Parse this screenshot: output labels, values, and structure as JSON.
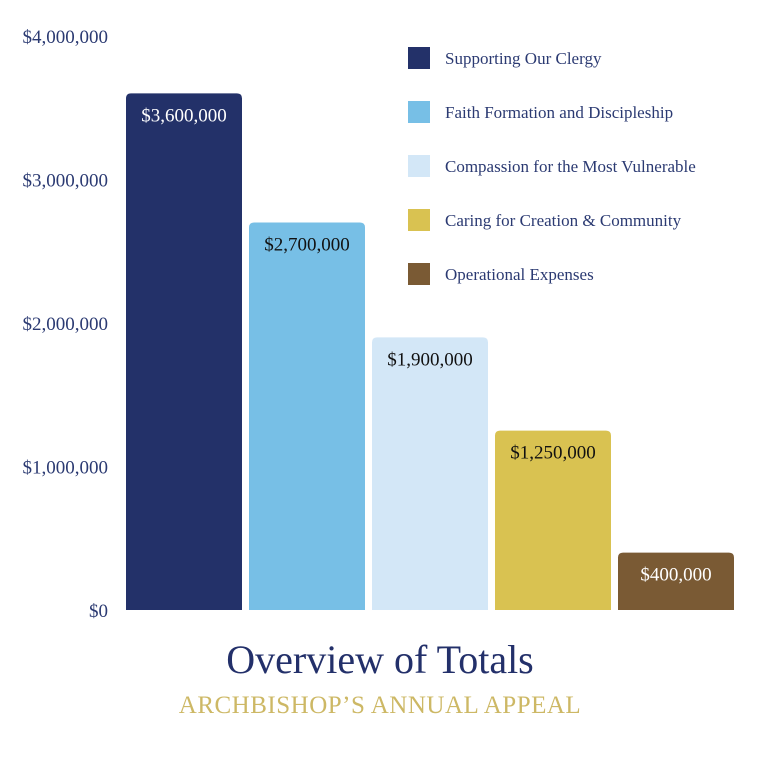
{
  "chart_data": {
    "type": "bar",
    "title": "Overview of Totals",
    "subtitle": "ARCHBISHOP’S ANNUAL APPEAL",
    "xlabel": "",
    "ylabel": "",
    "ylim": [
      0,
      4000000
    ],
    "y_ticks": [
      "$0",
      "$1,000,000",
      "$2,000,000",
      "$3,000,000",
      "$4,000,000"
    ],
    "y_tick_values": [
      0,
      1000000,
      2000000,
      3000000,
      4000000
    ],
    "grid": false,
    "legend_position": "top-right",
    "categories": [
      "Supporting Our Clergy",
      "Faith Formation and Discipleship",
      "Compassion for the Most Vulnerable",
      "Caring for Creation & Community",
      "Operational Expenses"
    ],
    "values": [
      3600000,
      2700000,
      1900000,
      1250000,
      400000
    ],
    "data_labels": [
      "$3,600,000",
      "$2,700,000",
      "$1,900,000",
      "$1,250,000",
      "$400,000"
    ],
    "colors": [
      "#233169",
      "#77bfe6",
      "#d3e7f7",
      "#d9c251",
      "#7a5a34"
    ],
    "label_colors": [
      "#ffffff",
      "#111111",
      "#111111",
      "#111111",
      "#ffffff"
    ]
  }
}
